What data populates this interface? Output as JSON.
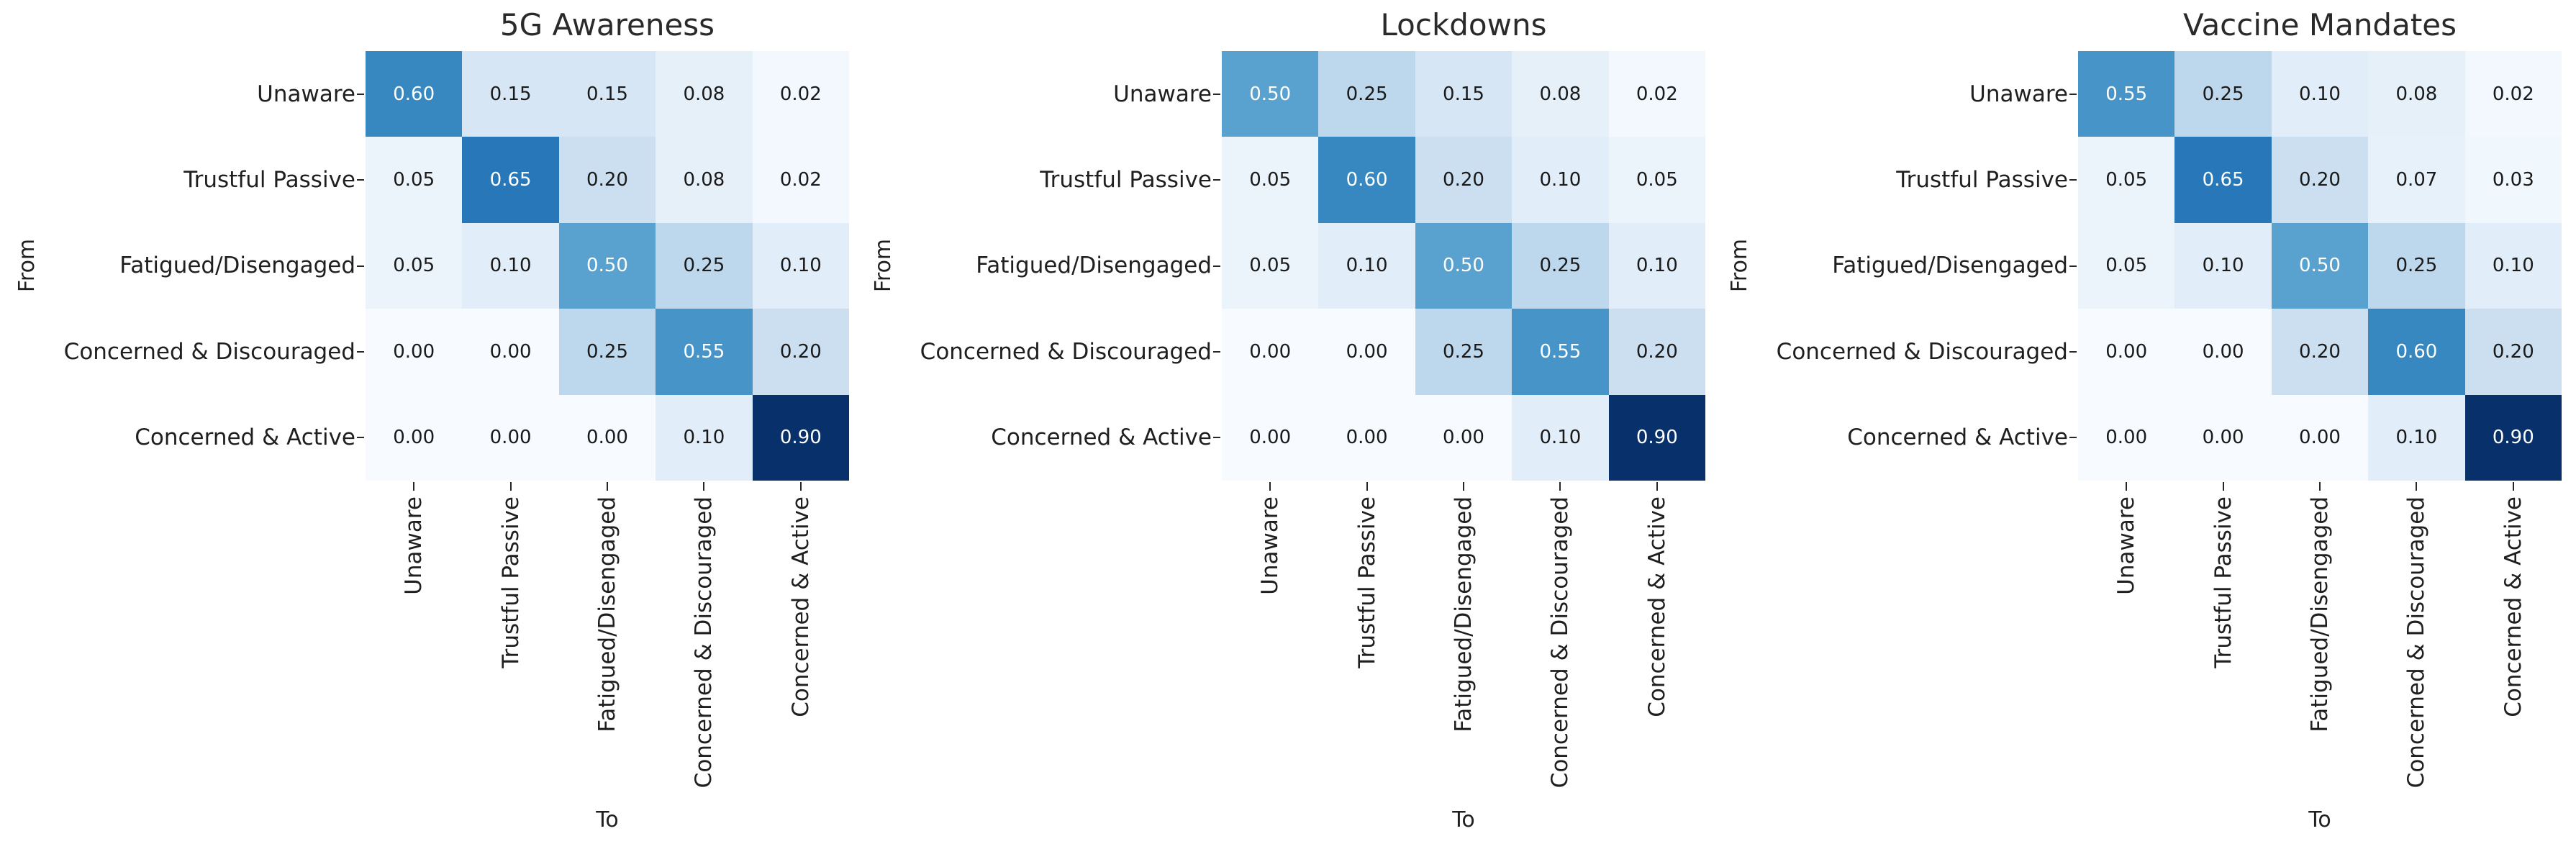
{
  "figure": {
    "background": "#ffffff",
    "text_color": "#1f1f1f",
    "annot_color_dark": "#1a1a1a",
    "annot_color_light": "#ffffff"
  },
  "chart_data": [
    {
      "type": "heatmap",
      "title": "5G Awareness",
      "xlabel": "To",
      "ylabel": "From",
      "rows": [
        "Unaware",
        "Trustful Passive",
        "Fatigued/Disengaged",
        "Concerned & Discouraged",
        "Concerned & Active"
      ],
      "cols": [
        "Unaware",
        "Trustful Passive",
        "Fatigued/Disengaged",
        "Concerned & Discouraged",
        "Concerned & Active"
      ],
      "matrix": [
        [
          0.6,
          0.15,
          0.15,
          0.08,
          0.02
        ],
        [
          0.05,
          0.65,
          0.2,
          0.08,
          0.02
        ],
        [
          0.05,
          0.1,
          0.5,
          0.25,
          0.1
        ],
        [
          0.0,
          0.0,
          0.25,
          0.55,
          0.2
        ],
        [
          0.0,
          0.0,
          0.0,
          0.1,
          0.9
        ]
      ],
      "annot_decimals": 2,
      "legend": "none",
      "grid": "off"
    },
    {
      "type": "heatmap",
      "title": "Lockdowns",
      "xlabel": "To",
      "ylabel": "From",
      "rows": [
        "Unaware",
        "Trustful Passive",
        "Fatigued/Disengaged",
        "Concerned & Discouraged",
        "Concerned & Active"
      ],
      "cols": [
        "Unaware",
        "Trustful Passive",
        "Fatigued/Disengaged",
        "Concerned & Discouraged",
        "Concerned & Active"
      ],
      "matrix": [
        [
          0.5,
          0.25,
          0.15,
          0.08,
          0.02
        ],
        [
          0.05,
          0.6,
          0.2,
          0.1,
          0.05
        ],
        [
          0.05,
          0.1,
          0.5,
          0.25,
          0.1
        ],
        [
          0.0,
          0.0,
          0.25,
          0.55,
          0.2
        ],
        [
          0.0,
          0.0,
          0.0,
          0.1,
          0.9
        ]
      ],
      "annot_decimals": 2,
      "legend": "none",
      "grid": "off"
    },
    {
      "type": "heatmap",
      "title": "Vaccine Mandates",
      "xlabel": "To",
      "ylabel": "From",
      "rows": [
        "Unaware",
        "Trustful Passive",
        "Fatigued/Disengaged",
        "Concerned & Discouraged",
        "Concerned & Active"
      ],
      "cols": [
        "Unaware",
        "Trustful Passive",
        "Fatigued/Disengaged",
        "Concerned & Discouraged",
        "Concerned & Active"
      ],
      "matrix": [
        [
          0.55,
          0.25,
          0.1,
          0.08,
          0.02
        ],
        [
          0.05,
          0.65,
          0.2,
          0.07,
          0.03
        ],
        [
          0.05,
          0.1,
          0.5,
          0.25,
          0.1
        ],
        [
          0.0,
          0.0,
          0.2,
          0.6,
          0.2
        ],
        [
          0.0,
          0.0,
          0.0,
          0.1,
          0.9
        ]
      ],
      "annot_decimals": 2,
      "legend": "none",
      "grid": "off"
    }
  ],
  "colormap": {
    "name": "Blues",
    "vmin": 0.0,
    "vmax": 0.9,
    "stops": [
      [
        0.0,
        "#f7fbff"
      ],
      [
        0.125,
        "#deebf7"
      ],
      [
        0.25,
        "#c6dbef"
      ],
      [
        0.375,
        "#9ecae1"
      ],
      [
        0.5,
        "#6baed6"
      ],
      [
        0.625,
        "#4292c6"
      ],
      [
        0.75,
        "#2171b5"
      ],
      [
        0.875,
        "#08519c"
      ],
      [
        1.0,
        "#08306b"
      ]
    ]
  }
}
